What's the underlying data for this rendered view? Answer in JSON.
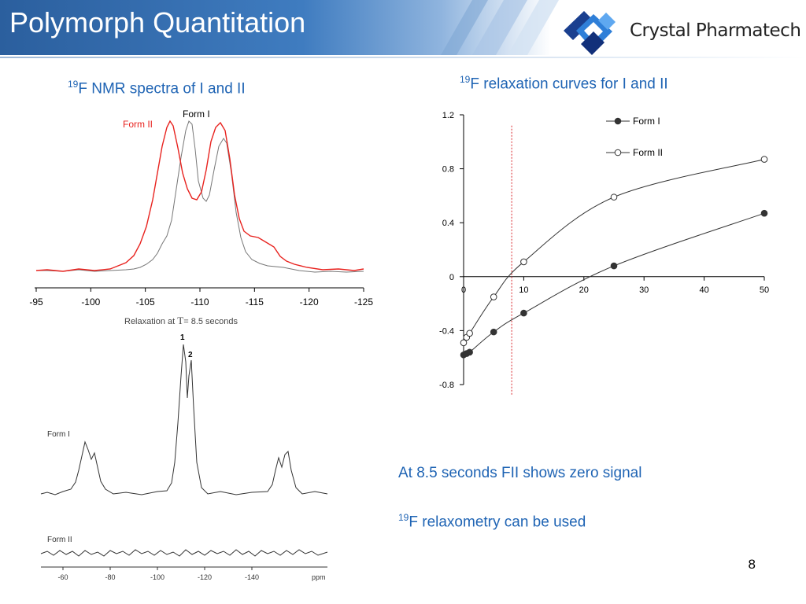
{
  "header": {
    "title": "Polymorph Quantitation"
  },
  "logo": {
    "brand": "Crystal Pharmatech",
    "mark": "crystal-logo-icon"
  },
  "left_heading": {
    "sup": "19",
    "text": "F NMR spectra of I and II"
  },
  "right_heading": {
    "sup": "19",
    "text": "F relaxation curves for I and II"
  },
  "spectra": {
    "form_i_label": "Form I",
    "form_ii_label": "Form II",
    "xticks": [
      "-95",
      "-100",
      "-105",
      "-110",
      "-115",
      "-120",
      "-125"
    ],
    "colors": {
      "form_i": "#777777",
      "form_ii": "#e8231f"
    }
  },
  "relax_spectrum": {
    "caption_prefix": "Relaxation at ",
    "caption_symbol": "T",
    "caption_suffix": "= 8.5 seconds",
    "peak1_label": "1",
    "peak2_label": "2",
    "form_i_label": "Form I",
    "form_ii_label": "Form II",
    "xticks": [
      "-60",
      "-80",
      "-100",
      "-120",
      "-140"
    ],
    "unit": "ppm"
  },
  "chart_data": {
    "type": "scatter",
    "title": "",
    "xlabel": "",
    "ylabel": "",
    "xlim": [
      0,
      50
    ],
    "ylim": [
      -0.8,
      1.2
    ],
    "xticks": [
      "0",
      "10",
      "20",
      "30",
      "40",
      "50"
    ],
    "yticks": [
      "1.2",
      "0.8",
      "0.4",
      "0",
      "-0.4",
      "-0.8"
    ],
    "legend_position": "top-right",
    "vertical_marker_x": 8.0,
    "series": [
      {
        "name": "Form I",
        "marker": "filled",
        "color": "#333333",
        "x": [
          0,
          0.5,
          1,
          5,
          10,
          25,
          50
        ],
        "y": [
          -0.58,
          -0.57,
          -0.56,
          -0.41,
          -0.27,
          0.08,
          0.47
        ]
      },
      {
        "name": "Form II",
        "marker": "open",
        "color": "#333333",
        "x": [
          0,
          0.5,
          1,
          5,
          10,
          25,
          50
        ],
        "y": [
          -0.49,
          -0.45,
          -0.42,
          -0.15,
          0.11,
          0.59,
          0.87
        ]
      }
    ]
  },
  "notes": {
    "line1": "At 8.5 seconds FII shows zero signal",
    "line2_sup": "19",
    "line2_text": "F relaxometry can be used"
  },
  "page_number": "8"
}
